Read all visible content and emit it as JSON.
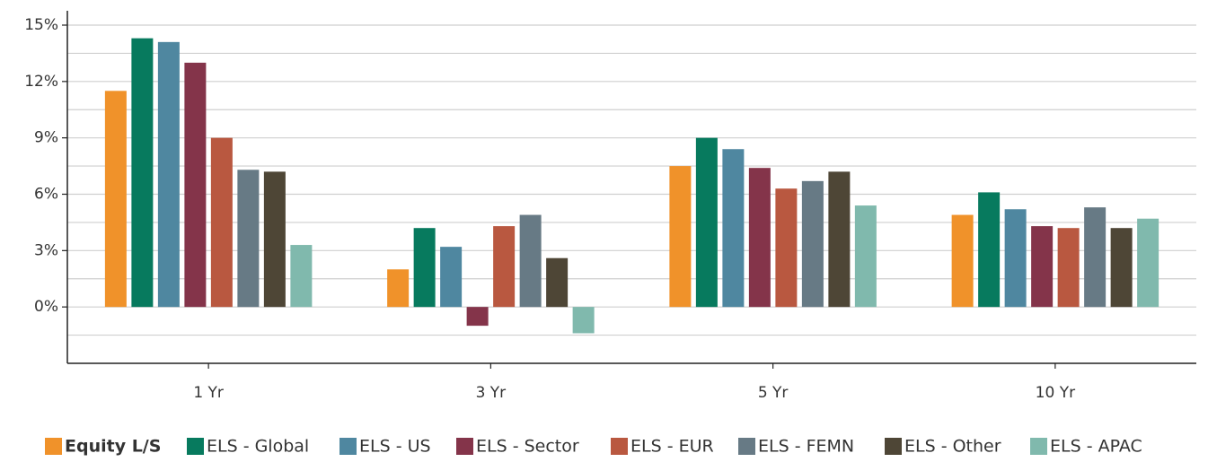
{
  "chart_data": {
    "type": "bar",
    "categories": [
      "1 Yr",
      "3 Yr",
      "5 Yr",
      "10 Yr"
    ],
    "series": [
      {
        "name": "Equity L/S",
        "color": "#f0922a",
        "values": [
          11.5,
          2.0,
          7.5,
          4.9
        ]
      },
      {
        "name": "ELS - Global",
        "color": "#077a5e",
        "values": [
          14.3,
          4.2,
          9.0,
          6.1
        ]
      },
      {
        "name": "ELS - US",
        "color": "#4f87a0",
        "values": [
          14.1,
          3.2,
          8.4,
          5.2
        ]
      },
      {
        "name": "ELS - Sector",
        "color": "#84344a",
        "values": [
          13.0,
          -1.0,
          7.4,
          4.3
        ]
      },
      {
        "name": "ELS - EUR",
        "color": "#b95840",
        "values": [
          9.0,
          4.3,
          6.3,
          4.2
        ]
      },
      {
        "name": "ELS - FEMN",
        "color": "#677a85",
        "values": [
          7.3,
          4.9,
          6.7,
          5.3
        ]
      },
      {
        "name": "ELS - Other",
        "color": "#4e4636",
        "values": [
          7.2,
          2.6,
          7.2,
          4.2
        ]
      },
      {
        "name": "ELS - APAC",
        "color": "#80b9ad",
        "values": [
          3.3,
          -1.4,
          5.4,
          4.7
        ]
      }
    ],
    "ylim": [
      -3,
      15
    ],
    "yticks": [
      {
        "value": 0,
        "label": "0%"
      },
      {
        "value": 3,
        "label": "3%"
      },
      {
        "value": 6,
        "label": "6%"
      },
      {
        "value": 9,
        "label": "9%"
      },
      {
        "value": 12,
        "label": "12%"
      },
      {
        "value": 15,
        "label": "15%"
      }
    ],
    "minor_yticks": [
      -1.5,
      1.5,
      4.5,
      7.5,
      10.5,
      13.5
    ],
    "grid": true,
    "legend": "bottom"
  }
}
